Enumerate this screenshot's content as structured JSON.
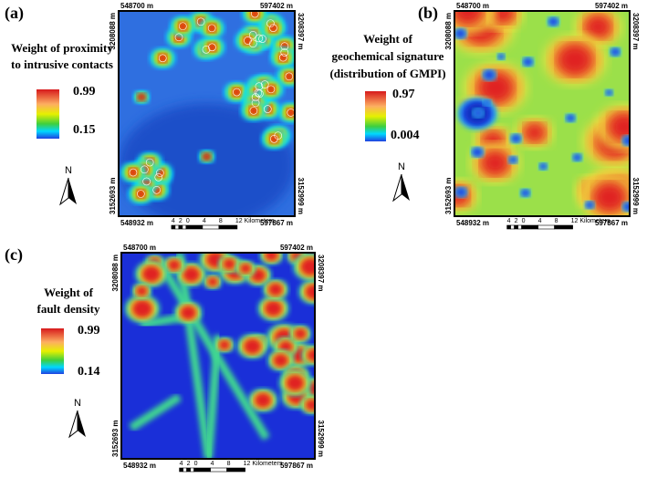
{
  "panels": [
    {
      "label": "(a)",
      "legend_title": [
        "Weight of proximity",
        "to intrusive contacts"
      ],
      "legend_max": "0.99",
      "legend_min": "0.15",
      "north": "N",
      "coords": {
        "top_left": "548700 m",
        "top_right": "597402 m",
        "left_top": "3208088 m",
        "left_bottom": "3152693 m",
        "right_top": "3208397 m",
        "right_bottom": "3152999 m",
        "bottom_left": "548932 m",
        "bottom_right": "597867 m"
      },
      "scale_labels": [
        "4",
        "2",
        "0",
        "4",
        "8",
        "12 Kilometers"
      ]
    },
    {
      "label": "(b)",
      "legend_title": [
        "Weight of",
        "geochemical signature",
        "(distribution of GMPI)"
      ],
      "legend_max": "0.97",
      "legend_min": "0.004",
      "north": "N",
      "coords": {
        "top_left": "548700 m",
        "top_right": "597402 m",
        "left_top": "3208088 m",
        "left_bottom": "3152693 m",
        "right_top": "3208397 m",
        "right_bottom": "3152999 m",
        "bottom_left": "548932 m",
        "bottom_right": "597867 m"
      },
      "scale_labels": [
        "4",
        "2",
        "0",
        "4",
        "8",
        "12 Kilometers"
      ]
    },
    {
      "label": "(c)",
      "legend_title": [
        "Weight of",
        "fault density"
      ],
      "legend_max": "0.99",
      "legend_min": "0.14",
      "north": "N",
      "coords": {
        "top_left": "548700 m",
        "top_right": "597402 m",
        "left_top": "3208088 m",
        "left_bottom": "3152693 m",
        "right_top": "3208397 m",
        "right_bottom": "3152999 m",
        "bottom_left": "548932 m",
        "bottom_right": "597867 m"
      },
      "scale_labels": [
        "4",
        "2",
        "0",
        "4",
        "8",
        "12 Kilometers"
      ]
    }
  ]
}
